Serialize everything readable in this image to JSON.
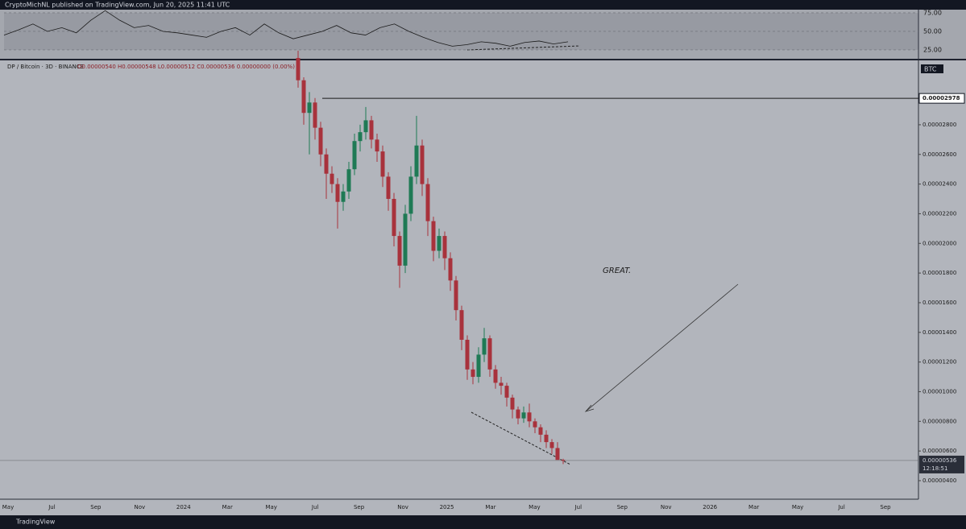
{
  "header": "CryptoMichNL published on TradingView.com, Jun 20, 2025 11:41 UTC",
  "footer": "TradingView",
  "annotation": "GREAT.",
  "chart_data": [
    {
      "type": "line",
      "name": "RSI",
      "values": [
        45,
        52,
        60,
        50,
        55,
        48,
        65,
        78,
        65,
        55,
        58,
        50,
        48,
        45,
        42,
        50,
        55,
        45,
        60,
        48,
        40,
        45,
        50,
        58,
        48,
        45,
        55,
        60,
        50,
        42,
        35,
        30,
        32,
        36,
        34,
        30,
        35,
        37,
        33,
        36
      ],
      "color": "#1a1a1a",
      "ylim": [
        14.1,
        79.3
      ],
      "yticks": [
        {
          "value": 75,
          "label": "75.00"
        },
        {
          "value": 50,
          "label": "50.00"
        },
        {
          "value": 25,
          "label": "25.00"
        }
      ]
    },
    {
      "type": "candlestick",
      "symbol": "DP / Bitcoin · 3D · BINANCE",
      "ohlc_label": "O0.00000540 H0.00000548 L0.00000512 C0.00000536 0.00000000 (0.00%)",
      "currency": "BTC",
      "open": [
        3.25e-05,
        3.1e-05,
        2.88e-05,
        2.95e-05,
        2.78e-05,
        2.6e-05,
        2.47e-05,
        2.4e-05,
        2.28e-05,
        2.35e-05,
        2.5e-05,
        2.69e-05,
        2.75e-05,
        2.83e-05,
        2.7e-05,
        2.62e-05,
        2.45e-05,
        2.3e-05,
        2.05e-05,
        1.85e-05,
        2.2e-05,
        2.45e-05,
        2.66e-05,
        2.4e-05,
        2.15e-05,
        1.95e-05,
        2.05e-05,
        1.9e-05,
        1.75e-05,
        1.55e-05,
        1.35e-05,
        1.15e-05,
        1.1e-05,
        1.25e-05,
        1.36e-05,
        1.15e-05,
        1.06e-05,
        1.04e-05,
        9.6e-06,
        8.8e-06,
        8.2e-06,
        8.6e-06,
        8e-06,
        7.6e-06,
        7.1e-06,
        6.6e-06,
        6.2e-06,
        5.4e-06
      ],
      "high": [
        3.3e-05,
        3.12e-05,
        3.02e-05,
        2.98e-05,
        2.82e-05,
        2.64e-05,
        2.52e-05,
        2.44e-05,
        2.4e-05,
        2.55e-05,
        2.74e-05,
        2.8e-05,
        2.92e-05,
        2.86e-05,
        2.74e-05,
        2.66e-05,
        2.48e-05,
        2.34e-05,
        2.08e-05,
        2.26e-05,
        2.52e-05,
        2.86e-05,
        2.7e-05,
        2.44e-05,
        2.18e-05,
        2.1e-05,
        2.08e-05,
        1.94e-05,
        1.78e-05,
        1.58e-05,
        1.38e-05,
        1.2e-05,
        1.3e-05,
        1.43e-05,
        1.38e-05,
        1.18e-05,
        1.1e-05,
        1.06e-05,
        9.8e-06,
        9e-06,
        9e-06,
        9.2e-06,
        8.2e-06,
        7.8e-06,
        7.4e-06,
        6.8e-06,
        6.6e-06,
        5.48e-06
      ],
      "low": [
        3.05e-05,
        2.8e-05,
        2.6e-05,
        2.7e-05,
        2.52e-05,
        2.3e-05,
        2.34e-05,
        2.1e-05,
        2.22e-05,
        2.3e-05,
        2.46e-05,
        2.62e-05,
        2.7e-05,
        2.64e-05,
        2.55e-05,
        2.38e-05,
        2.22e-05,
        1.98e-05,
        1.7e-05,
        1.8e-05,
        2.15e-05,
        2.4e-05,
        2.32e-05,
        2.05e-05,
        1.88e-05,
        1.9e-05,
        1.82e-05,
        1.68e-05,
        1.48e-05,
        1.28e-05,
        1.08e-05,
        1.05e-05,
        1.06e-05,
        1.2e-05,
        1.1e-05,
        1.02e-05,
        9.8e-06,
        9e-06,
        8.2e-06,
        7.8e-06,
        7.9e-06,
        7.6e-06,
        7.2e-06,
        6.6e-06,
        6.2e-06,
        5.8e-06,
        5.6e-06,
        5.12e-06
      ],
      "close": [
        3.1e-05,
        2.88e-05,
        2.95e-05,
        2.78e-05,
        2.6e-05,
        2.47e-05,
        2.4e-05,
        2.28e-05,
        2.35e-05,
        2.5e-05,
        2.69e-05,
        2.75e-05,
        2.83e-05,
        2.7e-05,
        2.62e-05,
        2.45e-05,
        2.3e-05,
        2.05e-05,
        1.85e-05,
        2.2e-05,
        2.45e-05,
        2.66e-05,
        2.4e-05,
        2.15e-05,
        1.95e-05,
        2.05e-05,
        1.9e-05,
        1.75e-05,
        1.55e-05,
        1.35e-05,
        1.15e-05,
        1.1e-05,
        1.25e-05,
        1.36e-05,
        1.15e-05,
        1.06e-05,
        1.04e-05,
        9.6e-06,
        8.8e-06,
        8.2e-06,
        8.6e-06,
        8e-06,
        7.6e-06,
        7.1e-06,
        6.6e-06,
        6.2e-06,
        5.4e-06,
        5.36e-06
      ],
      "up_color": "#1f7a55",
      "down_color": "#a8323c",
      "ylim": [
        2.75e-06,
        3.234e-05
      ],
      "yticks": [
        {
          "value": 2.8e-05,
          "label": "0.00002800"
        },
        {
          "value": 2.6e-05,
          "label": "0.00002600"
        },
        {
          "value": 2.4e-05,
          "label": "0.00002400"
        },
        {
          "value": 2.2e-05,
          "label": "0.00002200"
        },
        {
          "value": 2e-05,
          "label": "0.00002000"
        },
        {
          "value": 1.8e-05,
          "label": "0.00001800"
        },
        {
          "value": 1.6e-05,
          "label": "0.00001600"
        },
        {
          "value": 1.4e-05,
          "label": "0.00001400"
        },
        {
          "value": 1.2e-05,
          "label": "0.00001200"
        },
        {
          "value": 1e-05,
          "label": "0.00001000"
        },
        {
          "value": 8e-06,
          "label": "0.00000800"
        },
        {
          "value": 6e-06,
          "label": "0.00000600"
        },
        {
          "value": 4e-06,
          "label": "0.00000400"
        }
      ],
      "level": {
        "value": 2.978e-05,
        "label": "0.00002978"
      },
      "last_price": {
        "value": 5.36e-06,
        "label": "0.00000536"
      },
      "countdown": "12:18:51",
      "xlabels": [
        "May",
        "Jul",
        "Sep",
        "Nov",
        "2024",
        "Mar",
        "May",
        "Jul",
        "Sep",
        "Nov",
        "2025",
        "Mar",
        "May",
        "Jul",
        "Sep",
        "Nov",
        "2026",
        "Mar",
        "May",
        "Jul",
        "Sep"
      ]
    }
  ]
}
